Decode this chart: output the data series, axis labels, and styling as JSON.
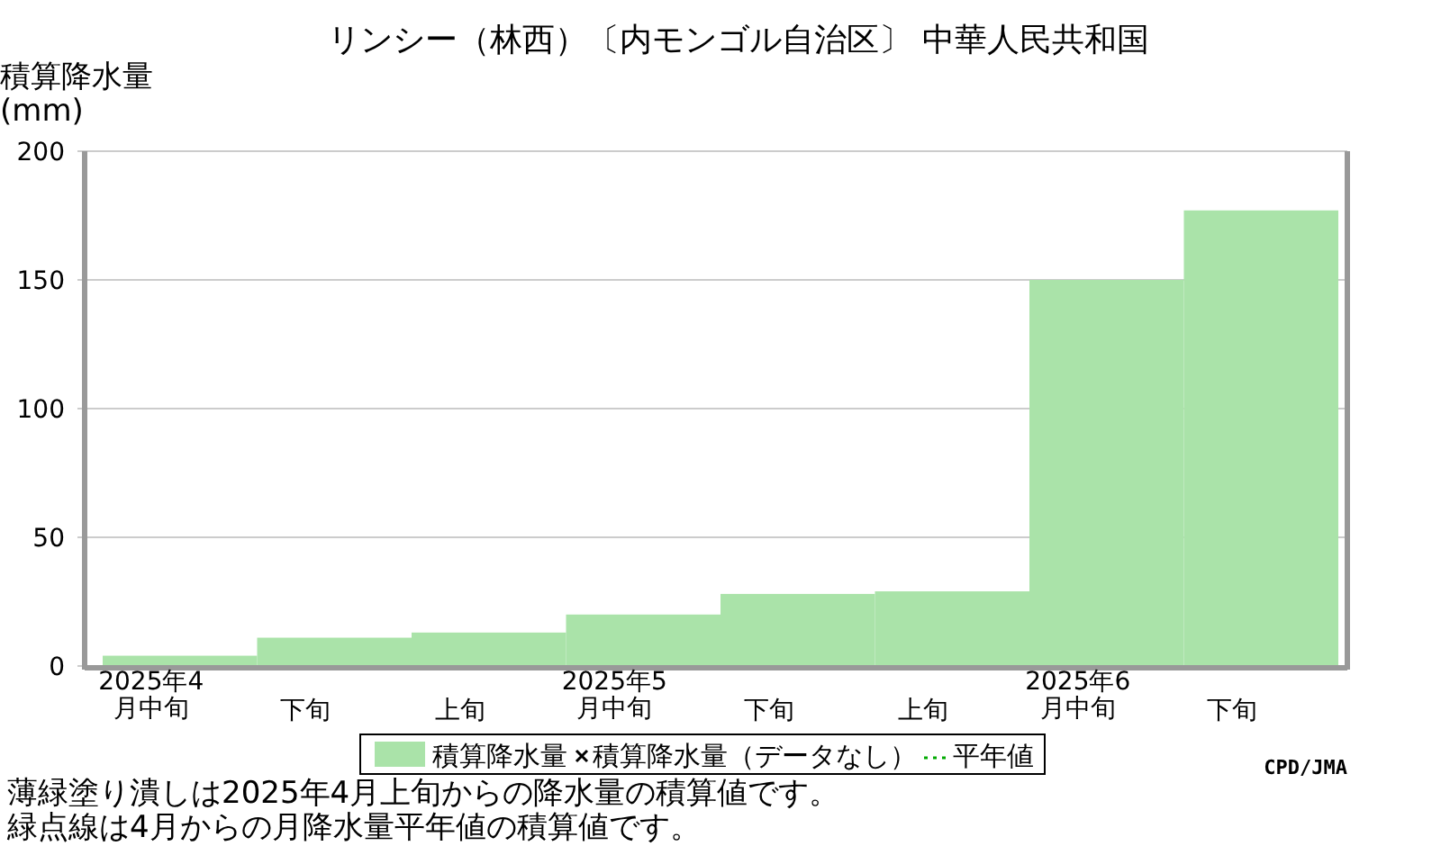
{
  "chart_data": {
    "type": "bar",
    "title": "リンシー（林西）〔内モンゴル自治区〕 中華人民共和国",
    "ylabel": "積算降水量(mm)",
    "categories": [
      "2025年4月中旬",
      "下旬",
      "上旬",
      "2025年5月中旬",
      "下旬",
      "上旬",
      "2025年6月中旬",
      "下旬"
    ],
    "series": [
      {
        "name": "積算降水量",
        "color": "#aae3a9",
        "values": [
          4,
          11,
          13,
          20,
          28,
          29,
          150,
          177
        ]
      },
      {
        "name": "積算降水量（データなし）",
        "type": "scatter",
        "marker": "cross",
        "color": "#000000",
        "values": [
          null,
          null,
          null,
          null,
          null,
          null,
          null,
          null
        ]
      },
      {
        "name": "平年値",
        "type": "line",
        "line_style": "dotted",
        "color": "#00aa00",
        "values": [
          null,
          null,
          null,
          null,
          null,
          null,
          null,
          null
        ]
      }
    ],
    "ylim": [
      0,
      200
    ],
    "yticks": [
      0,
      50,
      100,
      150,
      200
    ],
    "grid": "y",
    "legend": "bottom",
    "annotations": [
      "薄緑塗り潰しは2025年4月上旬からの降水量の積算値です。",
      "緑点線は4月からの月降水量平年値の積算値です。",
      "CPD/JMA"
    ]
  }
}
